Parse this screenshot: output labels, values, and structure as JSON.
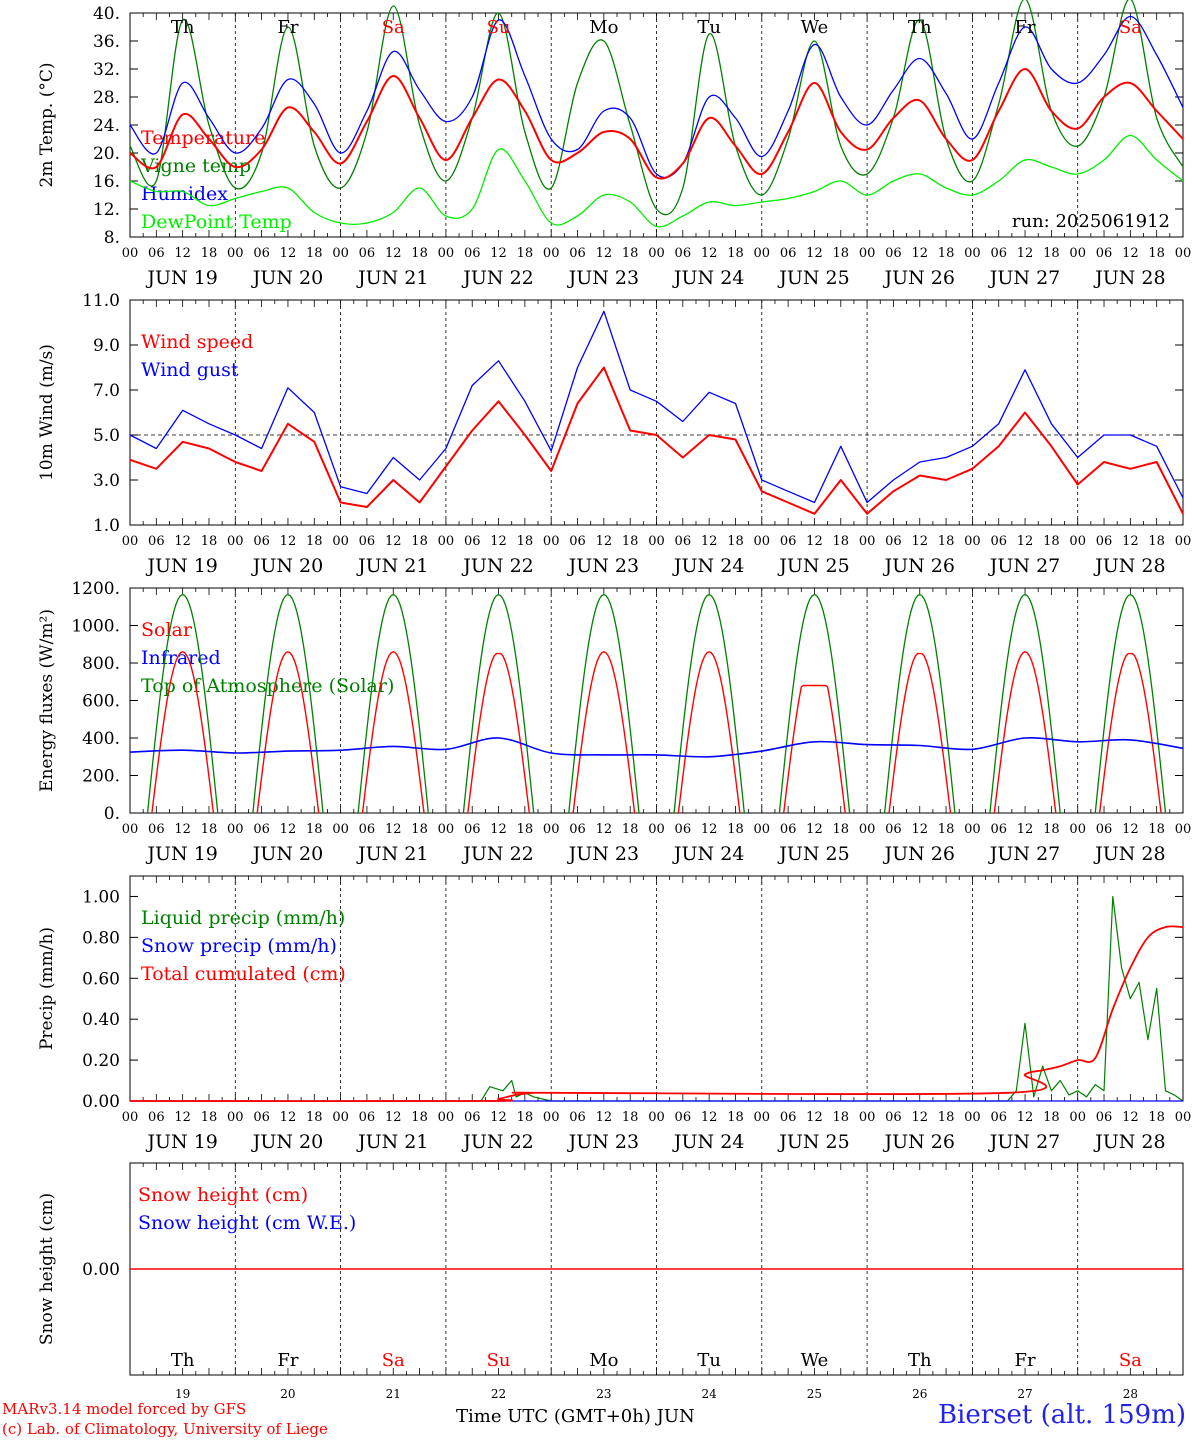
{
  "figure": {
    "run_label": "run: 2025061912",
    "footer_line1": "MARv3.14 model forced by GFS",
    "footer_line2": "(c) Lab. of Climatology, University of Liege",
    "xlabel": "Time UTC (GMT+0h)",
    "month": "JUN",
    "station": "Bierset (alt. 159m)"
  },
  "axis": {
    "hour_labels": [
      "00",
      "06",
      "12",
      "18"
    ],
    "date_labels": [
      "JUN 19",
      "JUN 20",
      "JUN 21",
      "JUN 22",
      "JUN 23",
      "JUN 24",
      "JUN 25",
      "JUN 26",
      "JUN 27",
      "JUN 28"
    ],
    "day_numbers": [
      "19",
      "20",
      "21",
      "22",
      "23",
      "24",
      "25",
      "26",
      "27",
      "28"
    ],
    "weekdays": [
      "Th",
      "Fr",
      "Sa",
      "Su",
      "Mo",
      "Tu",
      "We",
      "Th",
      "Fr",
      "Sa"
    ],
    "weekday_colors": [
      "#000000",
      "#000000",
      "#ff0000",
      "#ff0000",
      "#000000",
      "#000000",
      "#000000",
      "#000000",
      "#000000",
      "#ff0000"
    ]
  },
  "colors": {
    "red": "#ff0000",
    "green": "#008000",
    "blue": "#0000ff",
    "lightgreen": "#00ee00",
    "black": "#000000"
  },
  "chart_data": [
    {
      "type": "line",
      "ylabel": "2m Temp. (°C)",
      "ylim": [
        8,
        40
      ],
      "yticks": [
        "8.",
        "12.",
        "16.",
        "20.",
        "24.",
        "28.",
        "32.",
        "36.",
        "40."
      ],
      "legend": [
        "Temperature",
        "Vigne temp",
        "Humidex",
        "DewPoint Temp"
      ],
      "series": [
        {
          "name": "Temperature",
          "color": "#ff0000",
          "x": [
            0,
            6,
            12,
            18,
            24,
            30,
            36,
            42,
            48,
            54,
            60,
            66,
            72,
            78,
            84,
            90,
            96,
            102,
            108,
            114,
            120,
            126,
            132,
            138,
            144,
            150,
            156,
            162,
            168,
            174,
            180,
            186,
            192,
            198,
            204,
            210,
            216,
            222,
            228,
            234,
            240
          ],
          "values": [
            20,
            18,
            25.5,
            22,
            18,
            20.5,
            26.5,
            23,
            18.5,
            24.5,
            31,
            25,
            19,
            25,
            30.5,
            26,
            19,
            20,
            23,
            22,
            16.5,
            18.5,
            25,
            21,
            17,
            23,
            30,
            23,
            20.5,
            25,
            27.5,
            22,
            19,
            26,
            32,
            26,
            23.5,
            28,
            30,
            26,
            22
          ]
        },
        {
          "name": "Vigne temp",
          "color": "#008000",
          "x": [
            0,
            6,
            12,
            18,
            24,
            30,
            36,
            42,
            48,
            54,
            60,
            66,
            72,
            78,
            84,
            90,
            96,
            102,
            108,
            114,
            120,
            126,
            132,
            138,
            144,
            150,
            156,
            162,
            168,
            174,
            180,
            186,
            192,
            198,
            204,
            210,
            216,
            222,
            228,
            234,
            240
          ],
          "values": [
            21,
            16,
            39,
            24,
            15,
            20,
            38,
            21,
            15,
            23,
            41,
            24,
            16,
            25,
            40,
            23,
            15,
            30,
            36,
            24,
            12,
            15,
            37,
            21,
            14,
            22,
            36,
            21,
            17,
            25,
            39,
            22,
            16,
            27,
            42,
            26,
            21,
            28,
            42,
            25,
            18
          ]
        },
        {
          "name": "Humidex",
          "color": "#0000ff",
          "x": [
            0,
            6,
            12,
            18,
            24,
            30,
            36,
            42,
            48,
            54,
            60,
            66,
            72,
            78,
            84,
            90,
            96,
            102,
            108,
            114,
            120,
            126,
            132,
            138,
            144,
            150,
            156,
            162,
            168,
            174,
            180,
            186,
            192,
            198,
            204,
            210,
            216,
            222,
            228,
            234,
            240
          ],
          "values": [
            24,
            20,
            30,
            25,
            20,
            23.5,
            30.5,
            27,
            20,
            26,
            34.5,
            29,
            24.5,
            28,
            39,
            31,
            22,
            20.5,
            26,
            25,
            17,
            18.5,
            28,
            25,
            19.5,
            26,
            35.5,
            28,
            24,
            29,
            33.5,
            28.5,
            22,
            30,
            38,
            32,
            30,
            34,
            39.5,
            34,
            26.5
          ]
        },
        {
          "name": "DewPoint Temp",
          "color": "#00ee00",
          "x": [
            0,
            6,
            12,
            18,
            24,
            30,
            36,
            42,
            48,
            54,
            60,
            66,
            72,
            78,
            84,
            90,
            96,
            102,
            108,
            114,
            120,
            126,
            132,
            138,
            144,
            150,
            156,
            162,
            168,
            174,
            180,
            186,
            192,
            198,
            204,
            210,
            216,
            222,
            228,
            234,
            240
          ],
          "values": [
            16,
            14.5,
            14.5,
            12.5,
            13.5,
            14.5,
            15,
            11.5,
            10,
            10,
            11.5,
            15,
            11,
            12,
            20.5,
            16,
            10,
            11,
            14,
            13,
            9.5,
            11,
            13,
            12.5,
            13,
            13.5,
            14.5,
            16,
            14,
            16,
            17,
            15,
            14,
            16,
            19,
            18,
            17,
            19,
            22.5,
            19,
            16
          ]
        }
      ]
    },
    {
      "type": "line",
      "ylabel": "10m Wind (m/s)",
      "ylim": [
        1,
        11
      ],
      "yticks": [
        "1.0",
        "3.0",
        "5.0",
        "7.0",
        "9.0",
        "11.0"
      ],
      "reference_line": 5.0,
      "legend": [
        "Wind speed",
        "Wind gust"
      ],
      "series": [
        {
          "name": "Wind speed",
          "color": "#ff0000",
          "x": [
            0,
            6,
            12,
            18,
            24,
            30,
            36,
            42,
            48,
            54,
            60,
            66,
            72,
            78,
            84,
            90,
            96,
            102,
            108,
            114,
            120,
            126,
            132,
            138,
            144,
            150,
            156,
            162,
            168,
            174,
            180,
            186,
            192,
            198,
            204,
            210,
            216,
            222,
            228,
            234,
            240
          ],
          "values": [
            3.9,
            3.5,
            4.7,
            4.4,
            3.8,
            3.4,
            5.5,
            4.7,
            2.0,
            1.8,
            3.0,
            2.0,
            3.6,
            5.2,
            6.5,
            5.0,
            3.4,
            6.4,
            8.0,
            5.2,
            5.0,
            4.0,
            5.0,
            4.8,
            2.5,
            2.0,
            1.5,
            3.0,
            1.5,
            2.5,
            3.2,
            3.0,
            3.5,
            4.5,
            6.0,
            4.5,
            2.8,
            3.8,
            3.5,
            3.8,
            1.5
          ]
        },
        {
          "name": "Wind gust",
          "color": "#0000ff",
          "x": [
            0,
            6,
            12,
            18,
            24,
            30,
            36,
            42,
            48,
            54,
            60,
            66,
            72,
            78,
            84,
            90,
            96,
            102,
            108,
            114,
            120,
            126,
            132,
            138,
            144,
            150,
            156,
            162,
            168,
            174,
            180,
            186,
            192,
            198,
            204,
            210,
            216,
            222,
            228,
            234,
            240
          ],
          "values": [
            5.0,
            4.4,
            6.1,
            5.5,
            5.0,
            4.4,
            7.1,
            6.0,
            2.7,
            2.4,
            4.0,
            3.0,
            4.4,
            7.2,
            8.3,
            6.5,
            4.3,
            8.0,
            10.5,
            7.0,
            6.5,
            5.6,
            6.9,
            6.4,
            3.0,
            2.5,
            2.0,
            4.5,
            2.0,
            3.0,
            3.8,
            4.0,
            4.5,
            5.5,
            7.9,
            5.5,
            4.0,
            5.0,
            5.0,
            4.5,
            2.2
          ]
        }
      ]
    },
    {
      "type": "line",
      "ylabel": "Energy fluxes (W/m²)",
      "ylim": [
        0,
        1200
      ],
      "yticks": [
        "0.",
        "200.",
        "400.",
        "600.",
        "800.",
        "1000.",
        "1200."
      ],
      "legend": [
        "Solar",
        "Infrared",
        "Top of Atmosphere (Solar)"
      ],
      "solar_peaks": [
        860,
        880,
        880,
        850,
        870,
        870,
        680,
        850,
        860,
        850
      ],
      "toa_peak": 1165,
      "series": [
        {
          "name": "Infrared",
          "color": "#0000ff",
          "x": [
            0,
            12,
            24,
            36,
            48,
            60,
            72,
            84,
            96,
            108,
            120,
            132,
            144,
            156,
            168,
            180,
            192,
            204,
            216,
            228,
            240
          ],
          "values": [
            325,
            335,
            320,
            330,
            335,
            355,
            340,
            400,
            320,
            310,
            310,
            300,
            330,
            380,
            365,
            360,
            340,
            400,
            380,
            390,
            345
          ]
        }
      ]
    },
    {
      "type": "line",
      "ylabel": "Precip (mm/h)",
      "ylim": [
        0,
        1.1
      ],
      "yticks": [
        "0.00",
        "0.20",
        "0.40",
        "0.60",
        "0.80",
        "1.00"
      ],
      "legend": [
        "Liquid precip (mm/h)",
        "Snow precip (mm/h)",
        "Total cumulated (cm)"
      ],
      "series": [
        {
          "name": "Liquid precip (mm/h)",
          "color": "#008000",
          "x": [
            0,
            80,
            82,
            85,
            87,
            88,
            90,
            92,
            96,
            200,
            202,
            204,
            206,
            208,
            210,
            212,
            214,
            216,
            218,
            220,
            222,
            224,
            226,
            228,
            230,
            232,
            234,
            236,
            238,
            240
          ],
          "values": [
            0,
            0,
            0.07,
            0.05,
            0.1,
            0.02,
            0.04,
            0.02,
            0,
            0,
            0.05,
            0.38,
            0.02,
            0.17,
            0.05,
            0.1,
            0.03,
            0.05,
            0.02,
            0.08,
            0.05,
            1.0,
            0.65,
            0.5,
            0.58,
            0.3,
            0.55,
            0.05,
            0.03,
            0
          ]
        },
        {
          "name": "Total cumulated (cm)",
          "color": "#ff0000",
          "x": [
            0,
            80,
            84,
            88,
            92,
            96,
            240
          ],
          "values": [
            0,
            0,
            0.01,
            0.03,
            0.04,
            0.04,
            0.04
          ]
        }
      ],
      "cumulative_late": {
        "x": [
          200,
          204,
          208,
          212,
          216,
          220,
          224,
          228,
          232,
          236,
          240
        ],
        "values": [
          0.04,
          0.13,
          0.15,
          0.17,
          0.2,
          0.21,
          0.45,
          0.65,
          0.8,
          0.85,
          0.85
        ]
      }
    },
    {
      "type": "line",
      "ylabel": "Snow height (cm)",
      "yticks": [
        "0.00"
      ],
      "legend": [
        "Snow height (cm)",
        "Snow height (cm W.E.)"
      ],
      "series": [
        {
          "name": "Snow height (cm)",
          "color": "#ff0000",
          "x": [
            0,
            240
          ],
          "values": [
            0,
            0
          ]
        }
      ]
    }
  ]
}
